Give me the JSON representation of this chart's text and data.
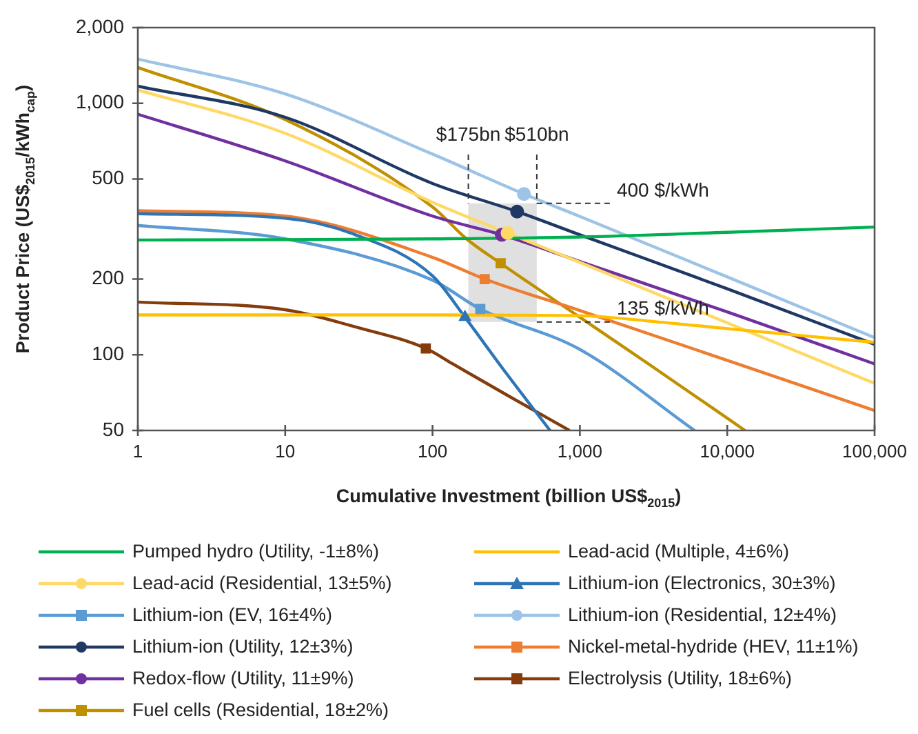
{
  "chart_data": {
    "type": "line",
    "xlabel": "Cumulative Investment (billion US$$_{2015}$)",
    "ylabel": "Product Price (US$$_{2015}$/kWh$_{cap}$)",
    "log": "xy",
    "xlim": [
      1,
      100000
    ],
    "xticks": [
      1,
      10,
      100,
      {
        "value": 1000,
        "label": "1,000"
      },
      {
        "value": 10000,
        "label": "10,000"
      },
      {
        "value": 100000,
        "label": "100,000"
      }
    ],
    "ylim": [
      50,
      2000
    ],
    "yticks": [
      50,
      100,
      200,
      500,
      {
        "value": 1000,
        "label": "1,000"
      },
      {
        "value": 2000,
        "label": "2,000"
      }
    ],
    "legend": "bottom",
    "bands": [
      {
        "axis": "x",
        "from": 175,
        "to": 510,
        "color": "#e0e0e0"
      }
    ],
    "ref_lines": [
      {
        "axis": "x",
        "value": 175,
        "label": "$175bn",
        "line_style": "dashed"
      },
      {
        "axis": "x",
        "value": 510,
        "label": "$510bn",
        "line_style": "dashed"
      },
      {
        "axis": "y",
        "value": 400,
        "label": "400 $/kWh",
        "line_style": "dashed"
      },
      {
        "axis": "y",
        "value": 135,
        "label": "135 $/kWh",
        "line_style": "dashed"
      }
    ],
    "series": [
      {
        "name": "Pumped hydro (Utility, -1±8%)",
        "color": "#00b050",
        "x": [
          1,
          10,
          100,
          1000,
          10000,
          100000
        ],
        "values": [
          286,
          287,
          289,
          294,
          307,
          322
        ]
      },
      {
        "name": "Lead-acid (Multiple, 4±6%)",
        "color": "#ffc000",
        "x": [
          1,
          100,
          1000,
          3000,
          10000,
          100000
        ],
        "values": [
          144,
          144,
          143,
          136,
          127,
          112
        ]
      },
      {
        "name": "Lead-acid (Residential, 13±5%)",
        "color": "#ffd966",
        "x": [
          1,
          10,
          100,
          323,
          1000,
          10000,
          100000
        ],
        "values": [
          1130,
          760,
          404,
          305,
          233,
          134,
          77
        ]
      },
      {
        "name": "Lithium-ion (Electronics, 30±3%)",
        "color": "#2e75b6",
        "x": [
          1,
          10,
          30,
          100,
          166,
          300,
          627
        ],
        "values": [
          364,
          349,
          300,
          206,
          141,
          88,
          50
        ]
      },
      {
        "name": "Lithium-ion (EV, 16±4%)",
        "color": "#5b9bd5",
        "x": [
          1,
          10,
          100,
          211,
          1000,
          6000
        ],
        "values": [
          327,
          289,
          198,
          152,
          105,
          50
        ]
      },
      {
        "name": "Lithium-ion (Residential, 12±4%)",
        "color": "#9dc3e6",
        "x": [
          1,
          10,
          100,
          417,
          1000,
          10000,
          100000
        ],
        "values": [
          1500,
          1090,
          628,
          436,
          355,
          204,
          117
        ]
      },
      {
        "name": "Lithium-ion (Utility, 12±3%)",
        "color": "#1f3864",
        "x": [
          1,
          10,
          100,
          375,
          1000,
          10000,
          100000
        ],
        "values": [
          1170,
          880,
          480,
          371,
          300,
          183,
          110
        ]
      },
      {
        "name": "Nickel-metal-hydride (HEV, 11±1%)",
        "color": "#ed7d31",
        "x": [
          1,
          10,
          100,
          226,
          1000,
          10000,
          100000
        ],
        "values": [
          374,
          356,
          244,
          200,
          150,
          95,
          60
        ]
      },
      {
        "name": "Redox-flow (Utility, 11±9%)",
        "color": "#7030a0",
        "x": [
          1,
          10,
          100,
          295,
          1000,
          10000,
          100000
        ],
        "values": [
          905,
          590,
          356,
          300,
          235,
          148,
          92
        ]
      },
      {
        "name": "Electrolysis (Utility, 18±6%)",
        "color": "#843c0c",
        "x": [
          1,
          10,
          30,
          90,
          137,
          322,
          850
        ],
        "values": [
          162,
          151,
          129,
          106,
          92,
          69,
          50
        ]
      },
      {
        "name": "Fuel cells (Residential, 18±2%)",
        "color": "#bf9000",
        "x": [
          1,
          10,
          100,
          170,
          290,
          1000,
          3000,
          13200
        ],
        "values": [
          1388,
          862,
          387,
          289,
          231,
          141,
          91,
          50
        ]
      },
      {
        "type": "scatter",
        "color": "#ffd966",
        "marker": "circle",
        "x": [
          323
        ],
        "values": [
          305
        ]
      },
      {
        "type": "scatter",
        "color": "#2e75b6",
        "marker": "triangle",
        "x": [
          166
        ],
        "values": [
          141
        ]
      },
      {
        "type": "scatter",
        "color": "#5b9bd5",
        "marker": "square",
        "x": [
          211
        ],
        "values": [
          152
        ]
      },
      {
        "type": "scatter",
        "color": "#9dc3e6",
        "marker": "circle",
        "x": [
          417
        ],
        "values": [
          436
        ]
      },
      {
        "type": "scatter",
        "color": "#1f3864",
        "marker": "circle",
        "x": [
          375
        ],
        "values": [
          371
        ]
      },
      {
        "type": "scatter",
        "color": "#ed7d31",
        "marker": "square",
        "x": [
          226
        ],
        "values": [
          200
        ]
      },
      {
        "type": "scatter",
        "color": "#7030a0",
        "marker": "circle",
        "x": [
          295
        ],
        "values": [
          300
        ]
      },
      {
        "type": "scatter",
        "color": "#843c0c",
        "marker": "square",
        "x": [
          90
        ],
        "values": [
          106
        ]
      },
      {
        "type": "scatter",
        "color": "#bf9000",
        "marker": "square",
        "x": [
          290
        ],
        "values": [
          231
        ]
      }
    ]
  }
}
